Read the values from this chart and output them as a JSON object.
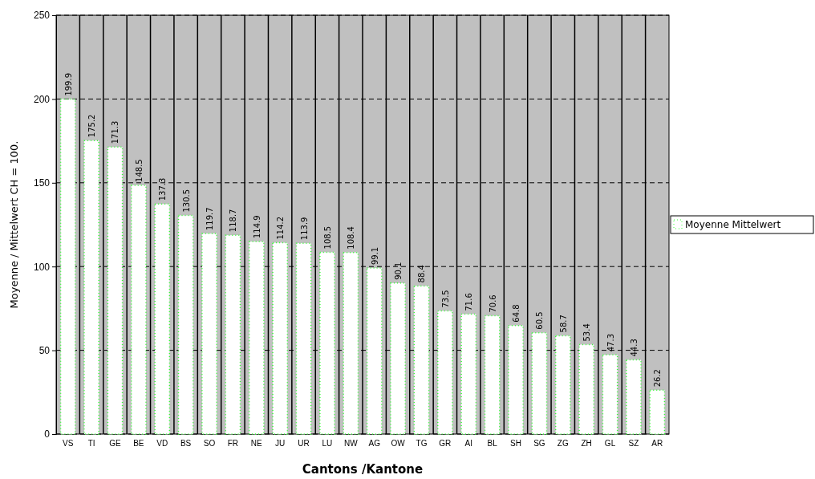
{
  "chart_data": {
    "type": "bar",
    "xlabel": "Cantons /Kantone",
    "ylabel": "Moyenne / Mittelwert CH = 100.",
    "categories": [
      "VS",
      "TI",
      "GE",
      "BE",
      "VD",
      "BS",
      "SO",
      "FR",
      "NE",
      "JU",
      "UR",
      "LU",
      "NW",
      "AG",
      "OW",
      "TG",
      "GR",
      "AI",
      "BL",
      "SH",
      "SG",
      "ZG",
      "ZH",
      "GL",
      "SZ",
      "AR"
    ],
    "series": [
      {
        "name": "Moyenne Mittelwert",
        "color": "#ffffff",
        "values": [
          199.9,
          175.2,
          171.3,
          148.5,
          137.3,
          130.5,
          119.7,
          118.7,
          114.9,
          114.2,
          113.9,
          108.5,
          108.4,
          99.1,
          90.1,
          88.4,
          73.5,
          71.6,
          70.6,
          64.8,
          60.5,
          58.7,
          53.4,
          47.3,
          44.3,
          26.2
        ]
      }
    ],
    "ylim": [
      0,
      250
    ],
    "yticks": [
      0,
      50,
      100,
      150,
      200,
      250
    ],
    "grid": true,
    "legend": "right",
    "data_labels": true
  }
}
